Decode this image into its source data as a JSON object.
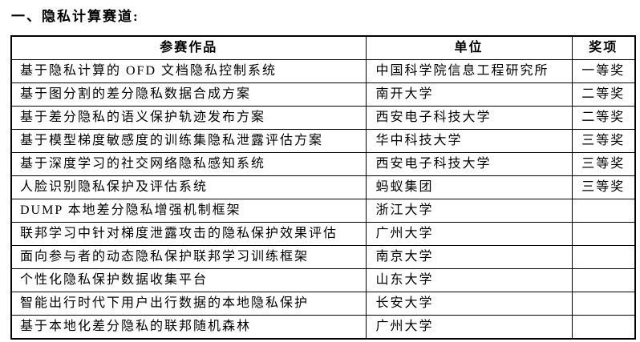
{
  "page": {
    "title": "一、隐私计算赛道:"
  },
  "colors": {
    "text": "#000000",
    "border": "#000000",
    "background": "#ffffff"
  },
  "table": {
    "headers": [
      "参赛作品",
      "单位",
      "奖项"
    ],
    "rows": [
      {
        "work": "基于隐私计算的 OFD 文档隐私控制系统",
        "org": "中国科学院信息工程研究所",
        "award": "一等奖"
      },
      {
        "work": "基于图分割的差分隐私数据合成方案",
        "org": "南开大学",
        "award": "二等奖"
      },
      {
        "work": "基于差分隐私的语义保护轨迹发布方案",
        "org": "西安电子科技大学",
        "award": "二等奖"
      },
      {
        "work": "基于模型梯度敏感度的训练集隐私泄露评估方案",
        "org": "华中科技大学",
        "award": "三等奖"
      },
      {
        "work": "基于深度学习的社交网络隐私感知系统",
        "org": "西安电子科技大学",
        "award": "三等奖"
      },
      {
        "work": "人脸识别隐私保护及评估系统",
        "org": "蚂蚁集团",
        "award": "三等奖"
      },
      {
        "work": "DUMP 本地差分隐私增强机制框架",
        "org": "浙江大学",
        "award": ""
      },
      {
        "work": "联邦学习中针对梯度泄露攻击的隐私保护效果评估",
        "org": "广州大学",
        "award": ""
      },
      {
        "work": "面向参与者的动态隐私保护联邦学习训练框架",
        "org": "南京大学",
        "award": ""
      },
      {
        "work": "个性化隐私保护数据收集平台",
        "org": "山东大学",
        "award": ""
      },
      {
        "work": "智能出行时代下用户出行数据的本地隐私保护",
        "org": "长安大学",
        "award": ""
      },
      {
        "work": "基于本地化差分隐私的联邦随机森林",
        "org": "广州大学",
        "award": ""
      }
    ]
  }
}
